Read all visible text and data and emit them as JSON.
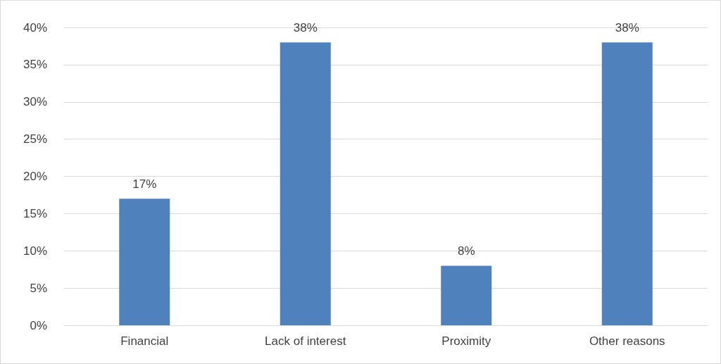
{
  "chart_data": {
    "type": "bar",
    "categories": [
      "Financial",
      "Lack of interest",
      "Proximity",
      "Other reasons"
    ],
    "values": [
      17,
      38,
      8,
      38
    ],
    "color": "#4f81bd",
    "value_labels": [
      "17%",
      "38%",
      "8%",
      "38%"
    ],
    "ylim": [
      0,
      40
    ],
    "yticks": [
      {
        "value": 0,
        "label": "0%"
      },
      {
        "value": 5,
        "label": "5%"
      },
      {
        "value": 10,
        "label": "10%"
      },
      {
        "value": 15,
        "label": "15%"
      },
      {
        "value": 20,
        "label": "20%"
      },
      {
        "value": 25,
        "label": "25%"
      },
      {
        "value": 30,
        "label": "30%"
      },
      {
        "value": 35,
        "label": "35%"
      },
      {
        "value": 40,
        "label": "40%"
      }
    ],
    "grid": "y"
  }
}
